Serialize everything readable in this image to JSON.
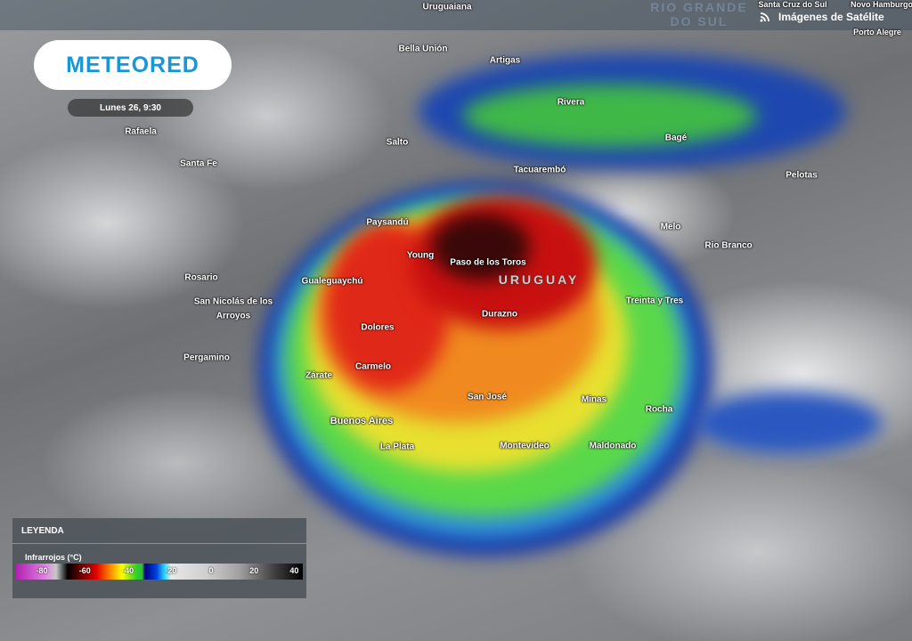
{
  "header": {
    "brand": "METEORED",
    "datetime": "Lunes 26, 9:30",
    "product": "Imágenes de Satélite",
    "product_icon": "wifi-signal-icon"
  },
  "map": {
    "country": "URUGUAY",
    "region": "RIO GRANDE DO SUL",
    "cities": [
      "Uruguaiana",
      "Bella Unión",
      "Artigas",
      "Salto",
      "Rivera",
      "Bagé",
      "Tacuarembó",
      "Pelotas",
      "Paysandú",
      "Melo",
      "Rio Branco",
      "Young",
      "Paso de los Toros",
      "Gualeguaychú",
      "Rosario",
      "San Nicolás de los",
      "Arroyos",
      "Durazno",
      "Treinta y Tres",
      "Dolores",
      "Pergamino",
      "Carmelo",
      "Zárate",
      "San José",
      "Minas",
      "Rocha",
      "Buenos Aires",
      "La Plata",
      "Montevideo",
      "Maldonado",
      "Rafaela",
      "Santa Fe",
      "Santa Cruz do Sul",
      "Novo Hamburgo",
      "Porto Alegre"
    ]
  },
  "legend": {
    "title": "LEYENDA",
    "subtitle": "Infrarrojos (°C)",
    "ticks": [
      "-80",
      "-60",
      "-40",
      "-20",
      "0",
      "20",
      "40"
    ],
    "colors": [
      "#b020b0",
      "#000000",
      "#e00000",
      "#ffff00",
      "#30c030",
      "#000080",
      "#30e0ff",
      "#e8e8e8",
      "#000000"
    ]
  }
}
